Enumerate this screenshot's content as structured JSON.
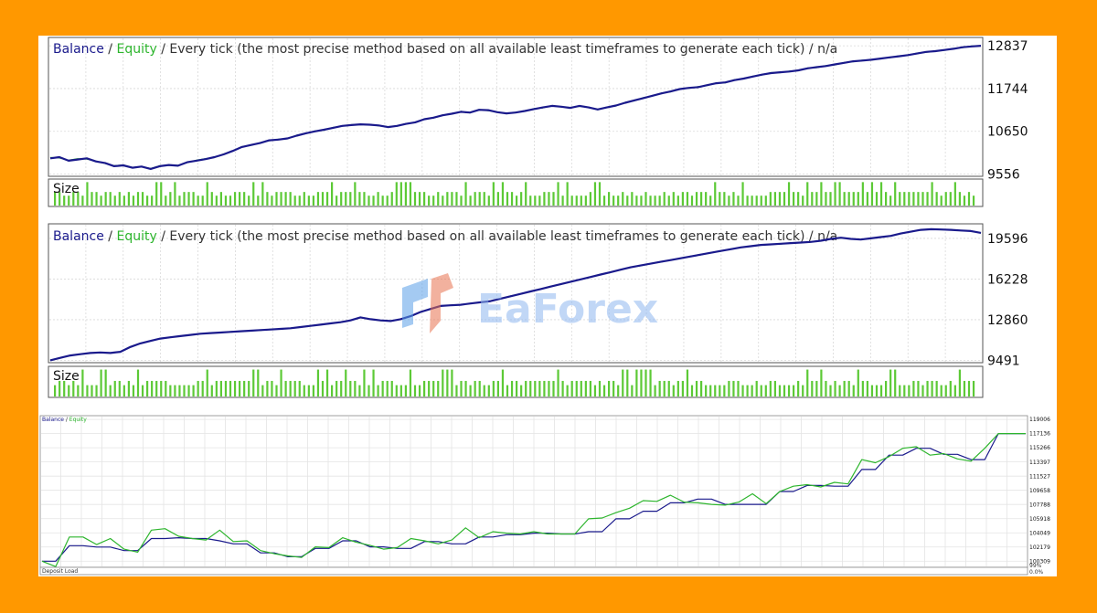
{
  "chart_data": [
    {
      "type": "line",
      "title_parts": {
        "balance": "Balance",
        "sep1": " / ",
        "equity": "Equity",
        "rest": " / Every tick (the most precise method based on all available least timeframes to generate each tick) / n/a"
      },
      "yticks": [
        12837,
        11744,
        10650,
        9556
      ],
      "ylim": [
        9500,
        13050
      ],
      "volume_label": "Size",
      "series": [
        {
          "name": "Balance",
          "values": [
            9960,
            9990,
            9900,
            9930,
            9960,
            9880,
            9840,
            9760,
            9780,
            9720,
            9750,
            9690,
            9760,
            9790,
            9770,
            9860,
            9900,
            9940,
            9990,
            10060,
            10150,
            10250,
            10300,
            10350,
            10420,
            10440,
            10470,
            10540,
            10600,
            10650,
            10690,
            10740,
            10790,
            10810,
            10830,
            10820,
            10800,
            10760,
            10790,
            10840,
            10880,
            10960,
            11000,
            11060,
            11100,
            11150,
            11130,
            11200,
            11190,
            11140,
            11110,
            11130,
            11170,
            11220,
            11260,
            11300,
            11280,
            11250,
            11300,
            11260,
            11210,
            11260,
            11310,
            11380,
            11440,
            11500,
            11560,
            11620,
            11670,
            11730,
            11760,
            11780,
            11830,
            11880,
            11900,
            11960,
            12000,
            12050,
            12100,
            12140,
            12160,
            12180,
            12210,
            12260,
            12290,
            12320,
            12360,
            12400,
            12440,
            12460,
            12480,
            12510,
            12540,
            12570,
            12600,
            12640,
            12680,
            12700,
            12730,
            12760,
            12800,
            12820,
            12837
          ]
        },
        {
          "name": "Equity",
          "values": [
            9980,
            9970,
            9910,
            9950,
            9940,
            9890,
            9830,
            9770,
            9790,
            9730,
            9740,
            9700,
            9770,
            9780,
            9780,
            9850,
            9910,
            9950,
            9980,
            10070,
            10140,
            10260,
            10290,
            10360,
            10410,
            10450,
            10460,
            10550,
            10590,
            10660,
            10680,
            10750,
            10780,
            10820,
            10820,
            10830,
            10790,
            10770,
            10780,
            10850,
            10870,
            10970,
            10990,
            11070,
            11090,
            11160,
            11120,
            11210,
            11180,
            11150,
            11100,
            11140,
            11160,
            11230,
            11250,
            11310,
            11270,
            11260,
            11290,
            11270,
            11200,
            11270,
            11300,
            11390,
            11430,
            11510,
            11550,
            11630,
            11660,
            11740,
            11750,
            11790,
            11820,
            11890,
            11890,
            11970,
            11990,
            12060,
            12090,
            12150,
            12150,
            12190,
            12200,
            12270,
            12280,
            12330,
            12350,
            12410,
            12430,
            12470,
            12470,
            12520,
            12530,
            12580,
            12590,
            12650,
            12670,
            12710,
            12720,
            12770,
            12790,
            12830,
            12830
          ]
        }
      ]
    },
    {
      "type": "line",
      "title_parts": {
        "balance": "Balance",
        "sep1": " / ",
        "equity": "Equity",
        "rest": " / Every tick (the most precise method based on all available least timeframes to generate each tick) / n/a"
      },
      "yticks": [
        19596,
        16228,
        12860,
        9491
      ],
      "ylim": [
        9300,
        20800
      ],
      "volume_label": "Size",
      "series": [
        {
          "name": "Balance",
          "values": [
            9500,
            9700,
            9900,
            10000,
            10100,
            10150,
            10100,
            10200,
            10600,
            10900,
            11100,
            11300,
            11400,
            11500,
            11600,
            11700,
            11750,
            11800,
            11850,
            11900,
            11950,
            12000,
            12050,
            12100,
            12150,
            12250,
            12350,
            12450,
            12550,
            12650,
            12800,
            13050,
            12900,
            12800,
            12750,
            12900,
            13150,
            13500,
            13750,
            14000,
            14050,
            14100,
            14200,
            14300,
            14400,
            14600,
            14800,
            15000,
            15200,
            15400,
            15600,
            15800,
            16000,
            16200,
            16400,
            16600,
            16800,
            17000,
            17200,
            17350,
            17500,
            17650,
            17800,
            17950,
            18100,
            18250,
            18400,
            18550,
            18700,
            18850,
            18950,
            19050,
            19100,
            19150,
            19200,
            19250,
            19300,
            19400,
            19550,
            19650,
            19550,
            19500,
            19600,
            19700,
            19800,
            20000,
            20150,
            20300,
            20350,
            20330,
            20300,
            20250,
            20200,
            20050
          ]
        },
        {
          "name": "Equity",
          "values": [
            9520,
            9680,
            9920,
            9980,
            10120,
            10130,
            10120,
            10180,
            10620,
            10880,
            11120,
            11280,
            11420,
            11480,
            11620,
            11680,
            11770,
            11780,
            11870,
            11880,
            11970,
            11980,
            12070,
            12080,
            12170,
            12230,
            12370,
            12430,
            12570,
            12630,
            12820,
            13030,
            12920,
            12780,
            12770,
            12880,
            13170,
            13480,
            13770,
            13980,
            14070,
            14080,
            14220,
            14280,
            14420,
            14580,
            14820,
            14980,
            15220,
            15380,
            15620,
            15780,
            16020,
            16180,
            16420,
            16580,
            16820,
            16980,
            17220,
            17330,
            17520,
            17630,
            17820,
            17930,
            18120,
            18230,
            18420,
            18530,
            18720,
            18830,
            18970,
            19030,
            19120,
            19130,
            19220,
            19230,
            19320,
            19380,
            19570,
            19630,
            19570,
            19480,
            19620,
            19680,
            19820,
            19980,
            20170,
            20280,
            20370,
            20310,
            20320,
            20230,
            20220,
            20030
          ]
        }
      ]
    },
    {
      "type": "line",
      "title_parts": {
        "balance": "Balance",
        "sep1": " / ",
        "equity": "Equity"
      },
      "yticks": [
        119006,
        117136,
        115266,
        113397,
        111527,
        109658,
        107788,
        105918,
        104049,
        102179,
        100309
      ],
      "ylim": [
        99500,
        119500
      ],
      "footer_label": "Deposit Load",
      "footer_ticks": [
        "99%",
        "0.0%"
      ],
      "series": [
        {
          "name": "Balance",
          "values": [
            100309,
            100309,
            102350,
            102350,
            102179,
            102179,
            101700,
            101700,
            103300,
            103300,
            103400,
            103300,
            103300,
            103000,
            102600,
            102600,
            101400,
            101400,
            100900,
            100900,
            102000,
            102000,
            103000,
            103000,
            102200,
            102200,
            102000,
            102000,
            102900,
            102900,
            102600,
            102600,
            103500,
            103500,
            103800,
            103800,
            104000,
            104000,
            103900,
            103900,
            104200,
            104200,
            105900,
            105900,
            106900,
            106900,
            108000,
            108000,
            108500,
            108500,
            107800,
            107800,
            107800,
            107800,
            109500,
            109500,
            110300,
            110300,
            110200,
            110200,
            112400,
            112400,
            114300,
            114300,
            115200,
            115200,
            114400,
            114400,
            113700,
            113700,
            117136,
            117136,
            117136
          ]
        },
        {
          "name": "Equity",
          "values": [
            100309,
            99600,
            103500,
            103500,
            102500,
            103300,
            101900,
            101500,
            104400,
            104600,
            103600,
            103300,
            103100,
            104400,
            102900,
            103000,
            101700,
            101300,
            101000,
            100800,
            102200,
            102100,
            103400,
            102800,
            102400,
            101900,
            102100,
            103300,
            103000,
            102600,
            103100,
            104700,
            103400,
            104200,
            104000,
            103900,
            104200,
            103900,
            103900,
            103900,
            105900,
            106000,
            106700,
            107300,
            108300,
            108200,
            109000,
            108100,
            108000,
            107800,
            107700,
            108100,
            109200,
            107900,
            109500,
            110200,
            110400,
            110100,
            110700,
            110500,
            113700,
            113300,
            114100,
            115200,
            115400,
            114300,
            114500,
            113800,
            113500,
            115200,
            117136,
            117136,
            117136
          ]
        }
      ]
    }
  ],
  "colors": {
    "balance": "#1a1a8c",
    "equity": "#2db52d",
    "volume": "#5cc936",
    "grid": "#d9d9d9",
    "frame": "#555555"
  }
}
